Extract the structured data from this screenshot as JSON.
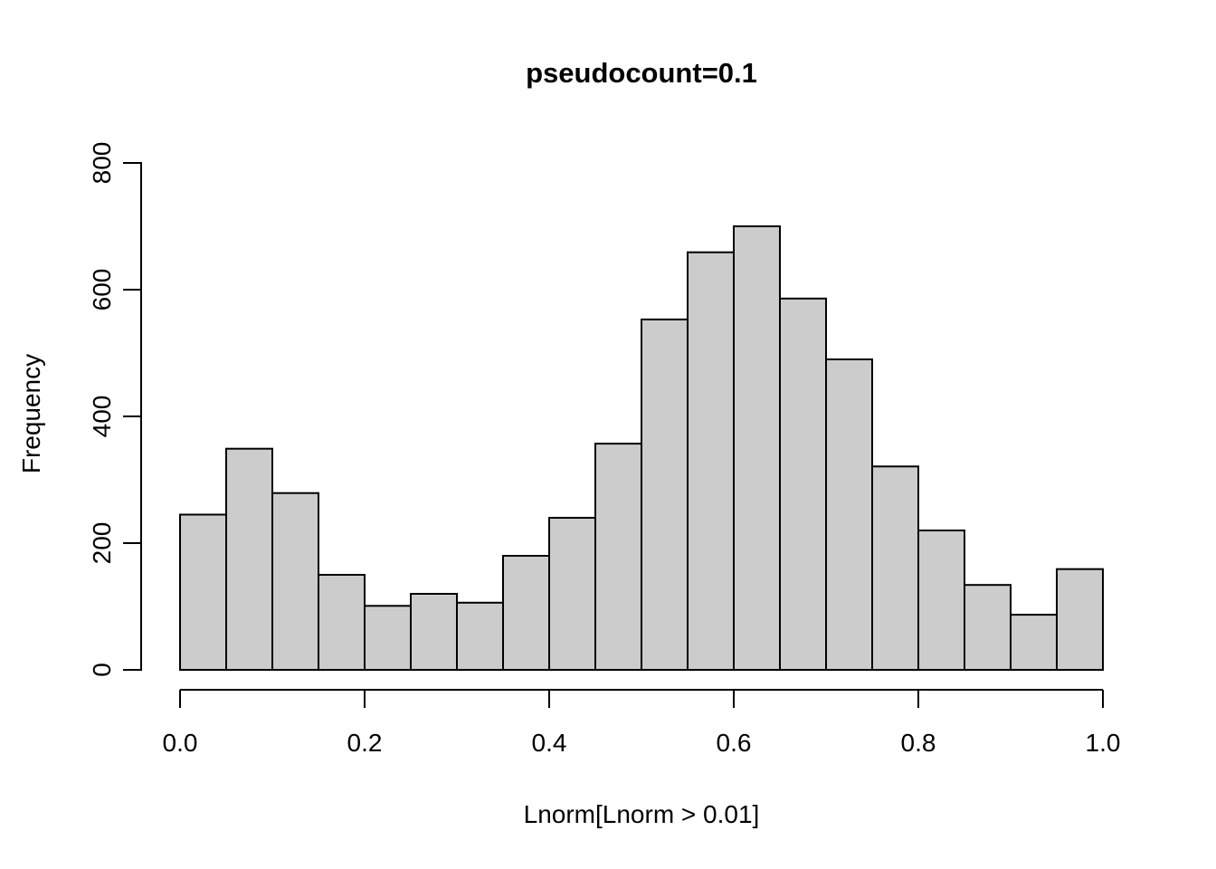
{
  "chart_data": {
    "type": "histogram",
    "title": "pseudocount=0.1",
    "xlabel": "Lnorm[Lnorm > 0.01]",
    "ylabel": "Frequency",
    "xlim": [
      0.0,
      1.0
    ],
    "ylim": [
      0,
      800
    ],
    "bin_width": 0.05,
    "bin_edges": [
      0.0,
      0.05,
      0.1,
      0.15,
      0.2,
      0.25,
      0.3,
      0.35,
      0.4,
      0.45,
      0.5,
      0.55,
      0.6,
      0.65,
      0.7,
      0.75,
      0.8,
      0.85,
      0.9,
      0.95,
      1.0
    ],
    "counts": [
      245,
      349,
      279,
      150,
      101,
      120,
      106,
      180,
      240,
      357,
      553,
      659,
      700,
      586,
      490,
      321,
      220,
      134,
      87,
      159
    ],
    "x_ticks": [
      0.0,
      0.2,
      0.4,
      0.6,
      0.8,
      1.0
    ],
    "x_tick_labels": [
      "0.0",
      "0.2",
      "0.4",
      "0.6",
      "0.8",
      "1.0"
    ],
    "y_ticks": [
      0,
      200,
      400,
      600,
      800
    ],
    "y_tick_labels": [
      "0",
      "200",
      "400",
      "600",
      "800"
    ],
    "grid": false,
    "legend": "none",
    "colors": {
      "bar_fill": "#cccccc",
      "bar_stroke": "#000000",
      "axis": "#000000",
      "text": "#000000",
      "background": "#ffffff"
    }
  }
}
